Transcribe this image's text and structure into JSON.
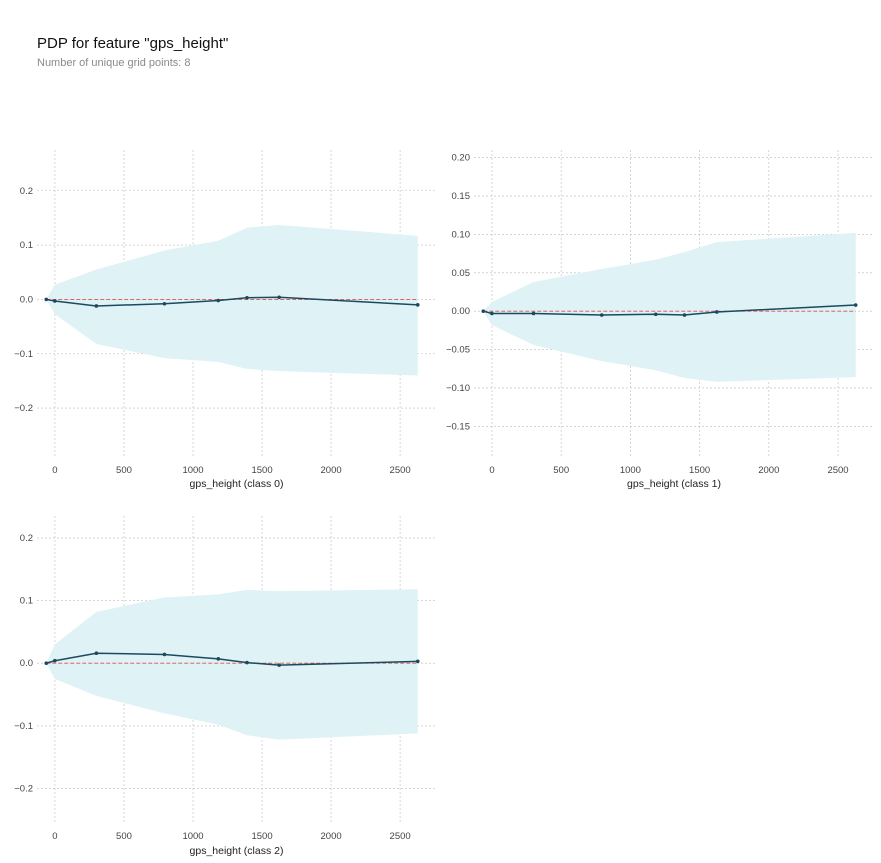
{
  "title": "PDP for feature \"gps_height\"",
  "subtitle": "Number of unique grid points: 8",
  "colors": {
    "line": "#1a4a5e",
    "band": "#dff2f6",
    "reference": "#d9534f",
    "grid": "#bdbdbd"
  },
  "chart_data": [
    {
      "type": "line",
      "xlabel": "gps_height (class 0)",
      "x": [
        -63,
        -1,
        300,
        793,
        1183,
        1391,
        1624,
        2628
      ],
      "y": [
        0.0,
        -0.003,
        -0.012,
        -0.008,
        -0.002,
        0.003,
        0.004,
        -0.01
      ],
      "band_upper": [
        0.0,
        0.027,
        0.055,
        0.09,
        0.108,
        0.132,
        0.137,
        0.117
      ],
      "band_lower": [
        0.0,
        -0.027,
        -0.082,
        -0.108,
        -0.115,
        -0.128,
        -0.132,
        -0.14
      ],
      "xlim": [
        -130,
        2760
      ],
      "ylim": [
        -0.29,
        0.275
      ],
      "xticks": [
        0,
        500,
        1000,
        1500,
        2000,
        2500
      ],
      "yticks": [
        0.2,
        0.1,
        0.0,
        -0.1,
        -0.2
      ],
      "ytick_labels": [
        "0.2",
        "0.1",
        "0.0",
        "−0.1",
        "−0.2"
      ],
      "grid": true
    },
    {
      "type": "line",
      "xlabel": "gps_height (class 1)",
      "x": [
        -63,
        -1,
        300,
        793,
        1183,
        1391,
        1624,
        2628
      ],
      "y": [
        0.0,
        -0.003,
        -0.003,
        -0.005,
        -0.004,
        -0.005,
        -0.001,
        0.008
      ],
      "band_upper": [
        0.0,
        0.012,
        0.038,
        0.055,
        0.067,
        0.077,
        0.09,
        0.102
      ],
      "band_lower": [
        0.0,
        -0.018,
        -0.044,
        -0.065,
        -0.077,
        -0.087,
        -0.092,
        -0.086
      ],
      "xlim": [
        -130,
        2760
      ],
      "ylim": [
        -0.19,
        0.21
      ],
      "xticks": [
        0,
        500,
        1000,
        1500,
        2000,
        2500
      ],
      "yticks": [
        0.2,
        0.15,
        0.1,
        0.05,
        0.0,
        -0.05,
        -0.1,
        -0.15
      ],
      "ytick_labels": [
        "0.20",
        "0.15",
        "0.10",
        "0.05",
        "0.00",
        "−0.05",
        "−0.10",
        "−0.15"
      ],
      "grid": true
    },
    {
      "type": "line",
      "xlabel": "gps_height (class 2)",
      "x": [
        -63,
        -1,
        300,
        793,
        1183,
        1391,
        1624,
        2628
      ],
      "y": [
        0.0,
        0.004,
        0.016,
        0.014,
        0.007,
        0.001,
        -0.003,
        0.003
      ],
      "band_upper": [
        0.0,
        0.03,
        0.082,
        0.105,
        0.11,
        0.117,
        0.115,
        0.118
      ],
      "band_lower": [
        0.0,
        -0.025,
        -0.052,
        -0.08,
        -0.098,
        -0.115,
        -0.122,
        -0.112
      ],
      "xlim": [
        -130,
        2760
      ],
      "ylim": [
        -0.255,
        0.235
      ],
      "xticks": [
        0,
        500,
        1000,
        1500,
        2000,
        2500
      ],
      "yticks": [
        0.2,
        0.1,
        0.0,
        -0.1,
        -0.2
      ],
      "ytick_labels": [
        "0.2",
        "0.1",
        "0.0",
        "−0.1",
        "−0.2"
      ],
      "grid": true
    }
  ]
}
